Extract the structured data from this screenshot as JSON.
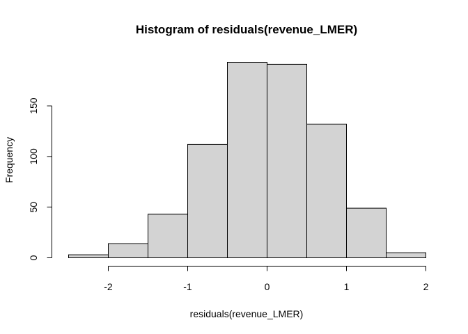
{
  "chart_data": {
    "type": "bar",
    "title": "Histogram of residuals(revenue_LMER)",
    "xlabel": "residuals(revenue_LMER)",
    "ylabel": "Frequency",
    "bins": [
      {
        "from": -2.5,
        "to": -2.0,
        "count": 3
      },
      {
        "from": -2.0,
        "to": -1.5,
        "count": 14
      },
      {
        "from": -1.5,
        "to": -1.0,
        "count": 43
      },
      {
        "from": -1.0,
        "to": -0.5,
        "count": 112
      },
      {
        "from": -0.5,
        "to": 0.0,
        "count": 193
      },
      {
        "from": 0.0,
        "to": 0.5,
        "count": 191
      },
      {
        "from": 0.5,
        "to": 1.0,
        "count": 132
      },
      {
        "from": 1.0,
        "to": 1.5,
        "count": 49
      },
      {
        "from": 1.5,
        "to": 2.0,
        "count": 5
      }
    ],
    "x_ticks": [
      -2,
      -1,
      0,
      1,
      2
    ],
    "x_tick_labels": [
      "-2",
      "-1",
      "0",
      "1",
      "2"
    ],
    "y_ticks": [
      0,
      50,
      100,
      150
    ],
    "y_tick_labels": [
      "0",
      "50",
      "100",
      "150"
    ],
    "xlim": [
      -2.5,
      2.0
    ],
    "ylim": [
      0,
      193
    ],
    "grid": false,
    "colors": {
      "bar_fill": "#d3d3d3",
      "bar_stroke": "#000000"
    }
  }
}
